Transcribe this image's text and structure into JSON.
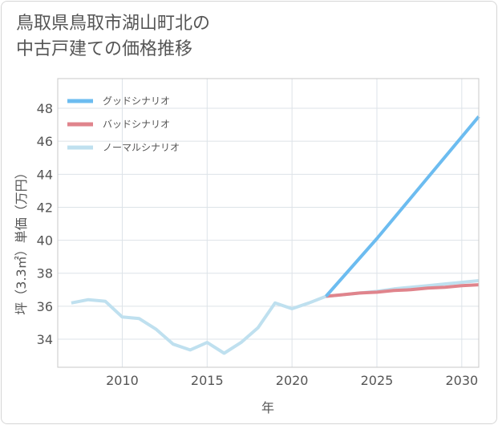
{
  "title": {
    "line1": "鳥取県鳥取市湖山町北の",
    "line2": "中古戸建ての価格推移"
  },
  "chart_data": {
    "type": "line",
    "title": "鳥取県鳥取市湖山町北の中古戸建ての価格推移",
    "xlabel": "年",
    "ylabel": "坪（3.3㎡）単価（万円）",
    "xlim": [
      2006.2,
      2031
    ],
    "ylim": [
      32.3,
      49.8
    ],
    "xticks": [
      2010,
      2015,
      2020,
      2025,
      2030
    ],
    "yticks": [
      34,
      36,
      38,
      40,
      42,
      44,
      46,
      48
    ],
    "grid": true,
    "legend_position": "top-left",
    "series": [
      {
        "name": "グッドシナリオ",
        "color": "#6cbcf0",
        "x": [
          2022,
          2025,
          2031
        ],
        "y": [
          36.6,
          40.1,
          47.5
        ]
      },
      {
        "name": "バッドシナリオ",
        "color": "#e0848c",
        "x": [
          2022,
          2023,
          2024,
          2025,
          2026,
          2027,
          2028,
          2029,
          2030,
          2031
        ],
        "y": [
          36.6,
          36.7,
          36.8,
          36.85,
          36.95,
          37.0,
          37.1,
          37.15,
          37.25,
          37.3
        ]
      },
      {
        "name": "ノーマルシナリオ",
        "color": "#bfe0ef",
        "x": [
          2007,
          2008,
          2009,
          2010,
          2011,
          2012,
          2013,
          2014,
          2015,
          2016,
          2017,
          2018,
          2019,
          2020,
          2021,
          2022,
          2023,
          2024,
          2025,
          2026,
          2027,
          2028,
          2029,
          2030,
          2031
        ],
        "y": [
          36.2,
          36.4,
          36.3,
          35.35,
          35.25,
          34.6,
          33.7,
          33.35,
          33.8,
          33.15,
          33.8,
          34.7,
          36.2,
          35.85,
          36.2,
          36.6,
          36.7,
          36.8,
          36.9,
          37.05,
          37.15,
          37.25,
          37.35,
          37.45,
          37.55
        ]
      }
    ]
  }
}
